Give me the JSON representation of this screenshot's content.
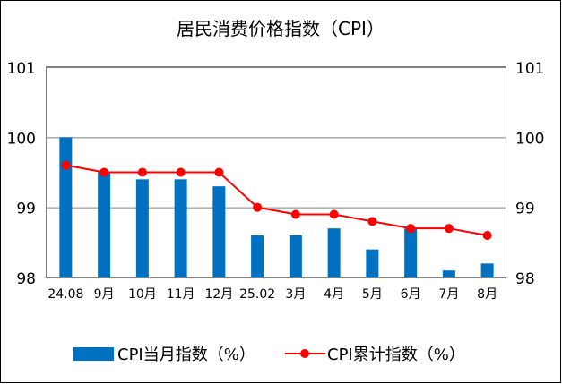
{
  "chart_data": {
    "type": "bar",
    "title": "居民消费价格指数（CPI）",
    "categories": [
      "24.08",
      "9月",
      "10月",
      "11月",
      "12月",
      "25.02",
      "3月",
      "4月",
      "5月",
      "6月",
      "7月",
      "8月"
    ],
    "series": [
      {
        "name": "CPI当月指数（%）",
        "type": "bar",
        "color": "#0070c0",
        "values": [
          100.0,
          99.5,
          99.4,
          99.4,
          99.3,
          98.6,
          98.6,
          98.7,
          98.4,
          98.7,
          98.1,
          98.2
        ]
      },
      {
        "name": "CPI累计指数（%）",
        "type": "line",
        "color": "#ff0000",
        "values": [
          99.6,
          99.5,
          99.5,
          99.5,
          99.5,
          99.0,
          98.9,
          98.9,
          98.8,
          98.7,
          98.7,
          98.6
        ]
      }
    ],
    "ylim": [
      98,
      101
    ],
    "yticks": [
      "98",
      "99",
      "100",
      "101"
    ],
    "y2ticks": [
      "98",
      "99",
      "100",
      "101"
    ],
    "grid": true,
    "legend": "bottom"
  }
}
